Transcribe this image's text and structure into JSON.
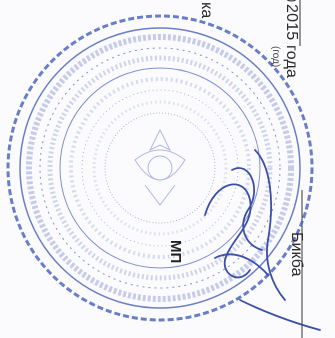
{
  "document": {
    "year_text": "2015 года",
    "year_hint": "(год)",
    "paren_fragment": ")",
    "top_fragment": "ка",
    "stamp_mark": "МП",
    "signer_surname_fragment": "Бикба"
  },
  "colors": {
    "stamp_ink": "#4a5fb8",
    "text_ink": "#2a2a2a"
  },
  "icons": {
    "stamp": "round-seal-stamp",
    "signature": "handwritten-signature"
  }
}
